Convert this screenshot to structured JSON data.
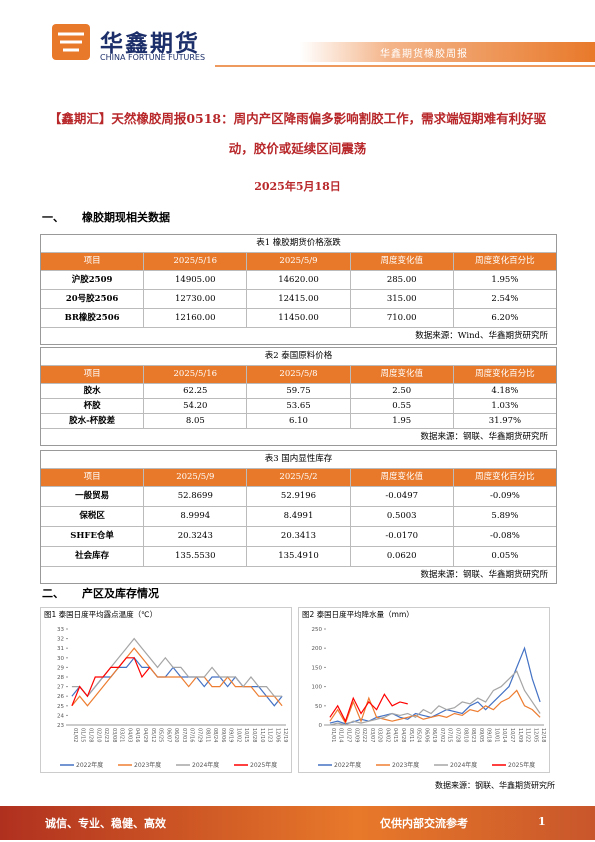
{
  "header": {
    "logo_cn": "华鑫期货",
    "logo_en": "CHINA FORTUNE FUTURES",
    "report_name": "华鑫期货橡胶周报"
  },
  "title": "【鑫期汇】天然橡胶周报0518：周内产区降雨偏多影响割胶工作，需求端短期难有利好驱动，胶价或延续区间震荡",
  "date": "2025年5月18日",
  "sections": [
    {
      "number": "一、",
      "heading": "橡胶期现相关数据"
    },
    {
      "number": "二、",
      "heading": "产区及库存情况"
    }
  ],
  "tables": [
    {
      "caption": "表1 橡胶期货价格涨跌",
      "columns": [
        "项目",
        "2025/5/16",
        "2025/5/9",
        "周度变化值",
        "周度变化百分比"
      ],
      "rows": [
        [
          "沪胶2509",
          "14905.00",
          "14620.00",
          "285.00",
          "1.95%"
        ],
        [
          "20号胶2506",
          "12730.00",
          "12415.00",
          "315.00",
          "2.54%"
        ],
        [
          "BR橡胶2506",
          "12160.00",
          "11450.00",
          "710.00",
          "6.20%"
        ]
      ],
      "source": "数据来源：Wind、华鑫期货研究所"
    },
    {
      "caption": "表2 泰国原料价格",
      "columns": [
        "项目",
        "2025/5/16",
        "2025/5/8",
        "周度变化值",
        "周度变化百分比"
      ],
      "rows": [
        [
          "胶水",
          "62.25",
          "59.75",
          "2.50",
          "4.18%"
        ],
        [
          "杯胶",
          "54.20",
          "53.65",
          "0.55",
          "1.03%"
        ],
        [
          "胶水-杯胶差",
          "8.05",
          "6.10",
          "1.95",
          "31.97%"
        ]
      ],
      "source": "数据来源：钢联、华鑫期货研究所"
    },
    {
      "caption": "表3 国内显性库存",
      "columns": [
        "项目",
        "2025/5/9",
        "2025/5/2",
        "周度变化值",
        "周度变化百分比"
      ],
      "rows": [
        [
          "一般贸易",
          "52.8699",
          "52.9196",
          "-0.0497",
          "-0.09%"
        ],
        [
          "保税区",
          "8.9994",
          "8.4991",
          "0.5003",
          "5.89%"
        ],
        [
          "SHFE仓单",
          "20.3243",
          "20.3413",
          "-0.0170",
          "-0.08%"
        ],
        [
          "社会库存",
          "135.5530",
          "135.4910",
          "0.0620",
          "0.05%"
        ]
      ],
      "source": "数据来源：钢联、华鑫期货研究所"
    }
  ],
  "chart_data": [
    {
      "type": "line",
      "title": "图1 泰国日度平均露点温度（℃）",
      "categories": [
        "01/02",
        "01/15",
        "01/28",
        "02/10",
        "02/23",
        "03/08",
        "03/21",
        "04/03",
        "04/16",
        "04/29",
        "05/12",
        "05/25",
        "06/07",
        "06/20",
        "07/03",
        "07/16",
        "07/29",
        "08/11",
        "08/24",
        "09/06",
        "09/19",
        "10/02",
        "10/15",
        "10/28",
        "11/10",
        "11/23",
        "12/06",
        "12/19"
      ],
      "series": [
        {
          "name": "2022年度",
          "color": "#4472c4",
          "values": [
            26,
            27,
            26,
            27,
            28,
            28,
            29,
            29,
            30,
            29,
            29,
            28,
            28,
            29,
            28,
            28,
            28,
            27,
            28,
            28,
            27,
            28,
            27,
            27,
            27,
            26,
            25,
            26
          ]
        },
        {
          "name": "2023年度",
          "color": "#ed7d31",
          "values": [
            25,
            26,
            25,
            26,
            27,
            28,
            29,
            30,
            31,
            30,
            29,
            28,
            28,
            28,
            28,
            27,
            28,
            28,
            27,
            27,
            28,
            27,
            27,
            27,
            26,
            26,
            26,
            25
          ]
        },
        {
          "name": "2024年度",
          "color": "#a5a5a5",
          "values": [
            27,
            27,
            26,
            27,
            28,
            29,
            30,
            31,
            32,
            31,
            30,
            29,
            30,
            29,
            29,
            28,
            28,
            28,
            29,
            28,
            28,
            28,
            27,
            28,
            27,
            27,
            26,
            26
          ]
        },
        {
          "name": "2025年度",
          "color": "#ff0000",
          "values": [
            25,
            27,
            26,
            28,
            28,
            29,
            29,
            30,
            30,
            28,
            29,
            null,
            null,
            null,
            null,
            null,
            null,
            null,
            null,
            null,
            null,
            null,
            null,
            null,
            null,
            null,
            null,
            null
          ]
        }
      ],
      "ylim": [
        23,
        33
      ],
      "yticks": [
        23,
        24,
        25,
        26,
        27,
        28,
        29,
        30,
        31,
        32,
        33
      ]
    },
    {
      "type": "line",
      "title": "图2 泰国日度平均降水量（mm）",
      "categories": [
        "01/01",
        "01/14",
        "01/27",
        "02/09",
        "02/22",
        "03/07",
        "03/20",
        "04/02",
        "04/15",
        "04/28",
        "05/11",
        "05/24",
        "06/06",
        "06/19",
        "07/02",
        "07/15",
        "07/28",
        "08/10",
        "08/23",
        "09/05",
        "09/18",
        "10/01",
        "10/14",
        "10/27",
        "11/09",
        "11/22",
        "12/05",
        "12/18"
      ],
      "series": [
        {
          "name": "2022年度",
          "color": "#4472c4",
          "values": [
            5,
            10,
            3,
            8,
            15,
            10,
            20,
            25,
            30,
            20,
            15,
            30,
            25,
            20,
            30,
            40,
            35,
            30,
            50,
            60,
            40,
            60,
            80,
            100,
            150,
            200,
            120,
            60
          ]
        },
        {
          "name": "2023年度",
          "color": "#ed7d31",
          "values": [
            10,
            40,
            5,
            60,
            10,
            70,
            20,
            15,
            10,
            15,
            20,
            25,
            15,
            20,
            25,
            20,
            30,
            25,
            40,
            35,
            50,
            40,
            60,
            70,
            90,
            50,
            40,
            20
          ]
        },
        {
          "name": "2024年度",
          "color": "#a5a5a5",
          "values": [
            0,
            5,
            0,
            10,
            5,
            10,
            15,
            20,
            30,
            25,
            30,
            20,
            40,
            30,
            50,
            40,
            45,
            60,
            55,
            70,
            60,
            90,
            100,
            120,
            140,
            90,
            60,
            30
          ]
        },
        {
          "name": "2025年度",
          "color": "#ff0000",
          "values": [
            20,
            50,
            10,
            70,
            30,
            60,
            40,
            80,
            50,
            60,
            55,
            null,
            null,
            null,
            null,
            null,
            null,
            null,
            null,
            null,
            null,
            null,
            null,
            null,
            null,
            null,
            null,
            null
          ]
        }
      ],
      "ylim": [
        0,
        250
      ],
      "yticks": [
        0,
        50,
        100,
        150,
        200,
        250
      ]
    }
  ],
  "chart_source": "数据来源：钢联、华鑫期货研究所",
  "footer": {
    "motto": "诚信、专业、稳健、高效",
    "notice": "仅供内部交流参考",
    "page": 1
  }
}
